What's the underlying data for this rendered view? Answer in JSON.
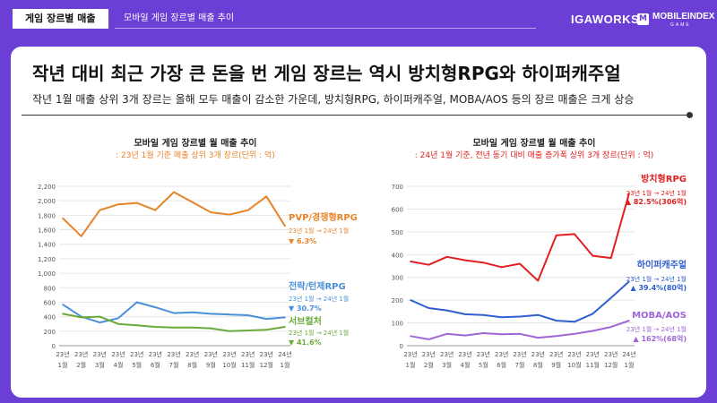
{
  "header": {
    "section_tag": "게임 장르별 매출",
    "section_subtitle": "모바일 게임 장르별 매출 추이",
    "logo_igaworks": "IGAWORKS",
    "logo_mobileindex": "MOBILEINDEX",
    "logo_mobileindex_sub": "GAME",
    "logo_m_glyph": "M"
  },
  "headline": "작년 대비 최근 가장 큰 돈을 번 게임 장르는 역시 방치형RPG와 하이퍼캐주얼",
  "subheadline": "작년 1월 매출 상위 3개 장르는 올해 모두 매출이 감소한 가운데, 방치형RPG, 하이퍼캐주얼, MOBA/AOS 등의 장르 매출은 크게 상승",
  "colors": {
    "pvp": "#e8832a",
    "strategy": "#4a90d9",
    "subculture": "#6aaa3a",
    "idle": "#e02020",
    "hyper": "#2f5fd0",
    "moba": "#a066d8"
  },
  "chart_data": [
    {
      "type": "line",
      "title": "모바일 게임 장르별 월 매출 추이",
      "subtitle": ": 23년 1월 기준 매출 상위 3개 장르(단위 : 억)",
      "categories_top": [
        "23년",
        "23년",
        "23년",
        "23년",
        "23년",
        "23년",
        "23년",
        "23년",
        "23년",
        "23년",
        "23년",
        "23년",
        "24년"
      ],
      "categories_bottom": [
        "1월",
        "2월",
        "3월",
        "4월",
        "5월",
        "6월",
        "7월",
        "8월",
        "9월",
        "10월",
        "11월",
        "12월",
        "1월"
      ],
      "ylim": [
        0,
        2200
      ],
      "yticks": [
        "0",
        "200",
        "400",
        "600",
        "800",
        "1,000",
        "1,200",
        "1,400",
        "1,600",
        "1,800",
        "2,000",
        "2,200"
      ],
      "series": [
        {
          "name": "PVP/경쟁형RPG",
          "color_key": "pvp",
          "note": "23년 1월 → 24년 1월",
          "change": "▼ 6.3%",
          "values": [
            1760,
            1510,
            1870,
            1950,
            1970,
            1870,
            2120,
            1980,
            1840,
            1810,
            1870,
            2060,
            1650
          ]
        },
        {
          "name": "전략/턴제RPG",
          "color_key": "strategy",
          "note": "23년 1월 → 24년 1월",
          "change": "▼ 30.7%",
          "values": [
            570,
            400,
            320,
            380,
            600,
            530,
            450,
            460,
            440,
            430,
            420,
            370,
            390
          ]
        },
        {
          "name": "서브컬처",
          "color_key": "subculture",
          "note": "23년 1월 → 24년 1월",
          "change": "▼ 41.6%",
          "values": [
            440,
            390,
            400,
            300,
            280,
            260,
            250,
            250,
            240,
            200,
            210,
            220,
            260
          ]
        }
      ]
    },
    {
      "type": "line",
      "title": "모바일 게임 장르별 월 매출 추이",
      "subtitle": ": 24년 1월 기준, 전년 동기 대비 매출 증가폭 상위 3개 장르(단위 : 억)",
      "categories_top": [
        "23년",
        "23년",
        "23년",
        "23년",
        "23년",
        "23년",
        "23년",
        "23년",
        "23년",
        "23년",
        "23년",
        "23년",
        "24년"
      ],
      "categories_bottom": [
        "1월",
        "2월",
        "3월",
        "4월",
        "5월",
        "6월",
        "7월",
        "8월",
        "9월",
        "10월",
        "11월",
        "12월",
        "1월"
      ],
      "ylim": [
        0,
        700
      ],
      "yticks": [
        "0",
        "100",
        "200",
        "300",
        "400",
        "500",
        "600",
        "700"
      ],
      "series": [
        {
          "name": "방치형RPG",
          "color_key": "idle",
          "note": "23년 1월 → 24년 1월",
          "change": "▲ 82.5%(306억)",
          "values": [
            370,
            355,
            390,
            375,
            365,
            345,
            360,
            285,
            485,
            490,
            395,
            385,
            670
          ]
        },
        {
          "name": "하이퍼캐주얼",
          "color_key": "hyper",
          "note": "23년 1월 → 24년 1월",
          "change": "▲ 39.4%(80억)",
          "values": [
            200,
            165,
            155,
            138,
            135,
            125,
            128,
            135,
            110,
            105,
            140,
            210,
            282
          ]
        },
        {
          "name": "MOBA/AOS",
          "color_key": "moba",
          "note": "23년 1월 → 24년 1월",
          "change": "▲ 162%(68억)",
          "values": [
            42,
            28,
            52,
            45,
            55,
            50,
            52,
            35,
            42,
            52,
            65,
            82,
            110
          ]
        }
      ]
    }
  ]
}
